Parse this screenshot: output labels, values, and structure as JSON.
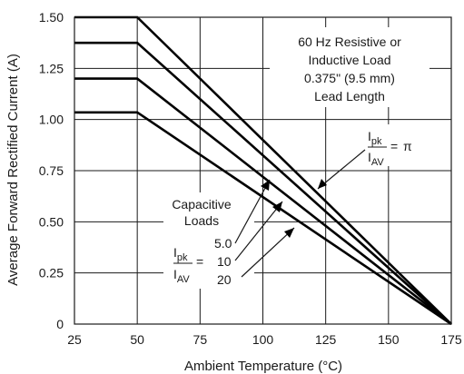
{
  "chart_data": {
    "type": "line",
    "xlabel": "Ambient Temperature (°C)",
    "ylabel": "Average Forward Rectified Current (A)",
    "xlim": [
      25,
      175
    ],
    "ylim": [
      0,
      1.5
    ],
    "x_ticks": [
      "25",
      "50",
      "75",
      "100",
      "125",
      "150",
      "175"
    ],
    "y_ticks": [
      "0",
      "0.25",
      "0.50",
      "0.75",
      "1.00",
      "1.25",
      "1.50"
    ],
    "x_tick_values": [
      25,
      50,
      75,
      100,
      125,
      150,
      175
    ],
    "y_tick_values": [
      0,
      0.25,
      0.5,
      0.75,
      1.0,
      1.25,
      1.5
    ],
    "grid": true,
    "series": [
      {
        "points": [
          [
            25,
            1.5
          ],
          [
            50,
            1.5
          ],
          [
            175,
            0
          ]
        ]
      },
      {
        "points": [
          [
            25,
            1.375
          ],
          [
            50,
            1.375
          ],
          [
            175,
            0
          ]
        ]
      },
      {
        "points": [
          [
            25,
            1.2
          ],
          [
            50,
            1.2
          ],
          [
            175,
            0
          ]
        ]
      },
      {
        "points": [
          [
            25,
            1.035
          ],
          [
            50,
            1.035
          ],
          [
            175,
            0
          ]
        ]
      }
    ],
    "annotations": {
      "load_note": [
        "60 Hz Resistive or",
        "Inductive Load",
        "0.375\" (9.5 mm)",
        "Lead Length"
      ],
      "ratio_numerator": "I",
      "ratio_numerator_sub": "pk",
      "ratio_denominator": "I",
      "ratio_denominator_sub": "AV",
      "ratio_equals": "=",
      "pi_value": "π",
      "capacitive_lines": [
        "Capacitive",
        "Loads"
      ],
      "capacitive_values": [
        "5.0",
        "10",
        "20"
      ]
    },
    "line_color": "#000000",
    "grid_color": "#1a1a1a"
  }
}
